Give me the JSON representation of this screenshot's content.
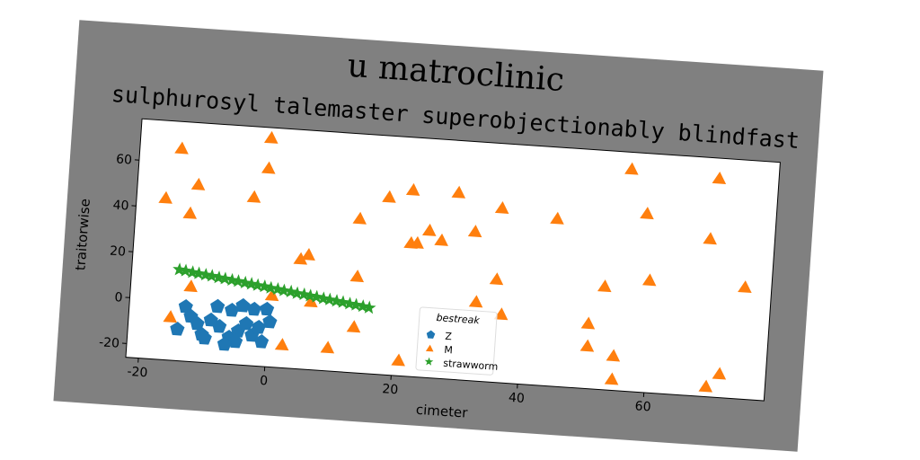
{
  "chart_data": {
    "type": "scatter",
    "title": "u matroclinic",
    "subtitle": "sulphurosyl talemaster superobjectionably blindfast",
    "x_label": "cimeter",
    "y_label": "traitorwise",
    "xlim": [
      -22,
      79
    ],
    "ylim": [
      -26,
      78
    ],
    "xticks": [
      -20,
      0,
      20,
      40,
      60
    ],
    "yticks": [
      -20,
      0,
      20,
      40,
      60
    ],
    "grid": false,
    "legend_title": "bestreak",
    "legend_position": "lower center",
    "series": [
      {
        "name": "Z",
        "color": "#1f77b4",
        "marker": "pentagon",
        "x": [
          -13.1,
          -12.2,
          -14.2,
          -10.3,
          -8.1,
          -5.8,
          -4.1,
          -2.3,
          -0.3,
          -7.6,
          -6.0,
          -4.6,
          -2.4,
          -0.8,
          -9.0,
          -11.1,
          -4.9,
          -1.4,
          0.3,
          -6.6,
          -9.8,
          -3.4
        ],
        "values": [
          -2.3,
          -6.4,
          -12.3,
          -13.9,
          -1.3,
          -2.5,
          -0.2,
          -1.4,
          -1.0,
          -9.9,
          -14.3,
          -11.3,
          -12.8,
          -15.3,
          -7.4,
          -9.4,
          -16.0,
          -9.1,
          -6.4,
          -17.5,
          -15.4,
          -7.9
        ]
      },
      {
        "name": "M",
        "color": "#ff7f0e",
        "marker": "triangle",
        "x": [
          -15.4,
          -1.4,
          -17.4,
          -12.4,
          -13.4,
          -1.5,
          -3.5,
          13.4,
          17.8,
          21.5,
          28.7,
          24.5,
          21.7,
          22.7,
          26.5,
          31.7,
          35.7,
          44.5,
          55.7,
          69.6,
          58.6,
          68.8,
          74.8,
          59.7,
          52.7,
          35.6,
          36.7,
          32.6,
          50.5,
          50.6,
          54.8,
          54.8,
          71.7,
          69.7,
          13.6,
          13.6,
          5.7,
          4.5,
          6.6,
          9.7,
          2.5,
          0.4,
          -12.5,
          -15.4,
          21.0
        ],
        "values": [
          66.5,
          73.7,
          44.5,
          51.3,
          38.6,
          60.5,
          47.5,
          41.3,
          51.5,
          55.3,
          55.5,
          38.2,
          32.2,
          32.4,
          34.3,
          39.1,
          50.1,
          47.1,
          70.8,
          69.4,
          52.0,
          42.9,
          22.9,
          23.1,
          19.1,
          19.0,
          3.9,
          8.6,
          2.5,
          -7.3,
          -10.8,
          -21.0,
          -15.5,
          -21.4,
          16.1,
          -5.9,
          24.1,
          22.0,
          3.8,
          -15.7,
          -15.8,
          5.4,
          6.9,
          -7.0,
          -19.1
        ]
      },
      {
        "name": "strawworm",
        "color": "#2ca02c",
        "marker": "star",
        "x": [
          -14.5,
          -13.5,
          -12.4,
          -11.4,
          -10.3,
          -9.3,
          -8.2,
          -7.2,
          -6.1,
          -5.1,
          -4.0,
          -3.0,
          -2.0,
          -0.9,
          0.1,
          1.2,
          2.2,
          3.3,
          4.3,
          5.4,
          6.4,
          7.4,
          8.5,
          9.5,
          10.6,
          11.6,
          12.7,
          13.7,
          14.8,
          15.8
        ],
        "values": [
          13.6,
          13.3,
          12.8,
          12.5,
          12.1,
          11.8,
          11.3,
          11.0,
          10.6,
          10.3,
          9.8,
          9.5,
          9.1,
          8.8,
          8.3,
          8.0,
          7.6,
          7.3,
          6.8,
          6.5,
          6.1,
          5.8,
          5.3,
          5.0,
          4.6,
          4.3,
          3.8,
          3.5,
          3.1,
          2.7
        ]
      }
    ]
  }
}
